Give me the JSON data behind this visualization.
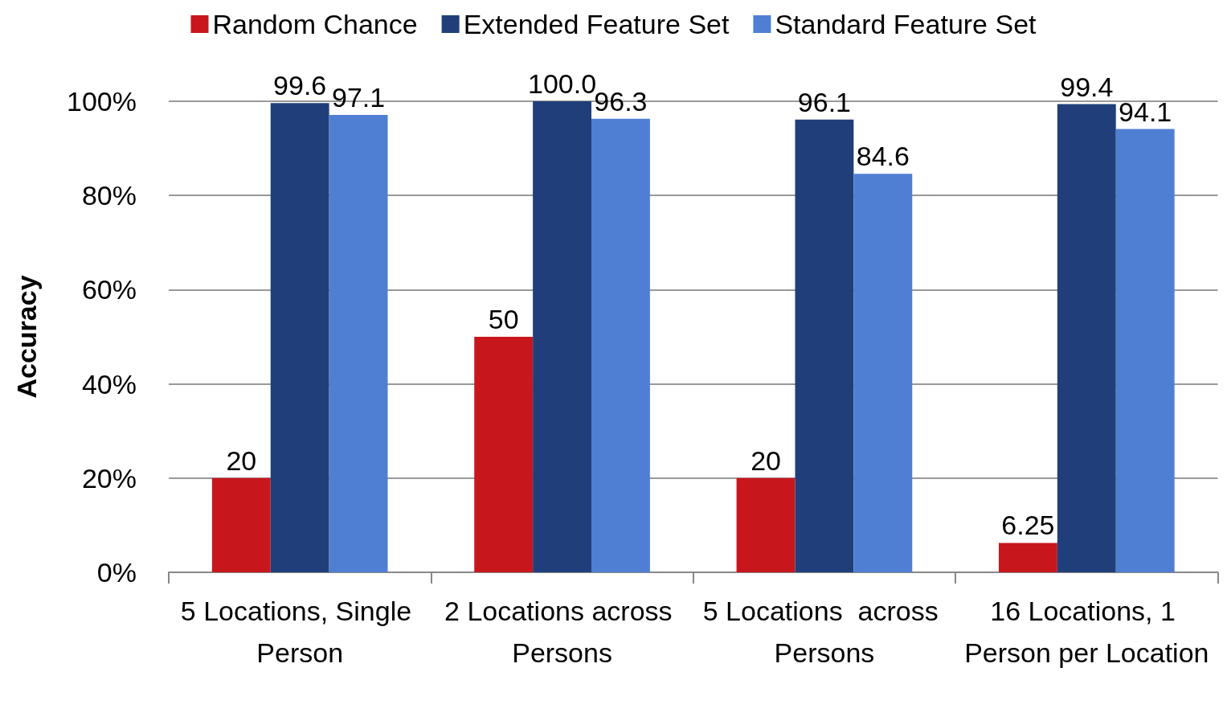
{
  "chart_data": {
    "type": "bar",
    "ylabel": "Accuracy",
    "categories": [
      "5 Locations, Single Person",
      "2 Locations across Persons",
      "5 Locations  across Persons",
      "16 Locations, 1 Person per Location"
    ],
    "series": [
      {
        "name": "Random Chance",
        "color": "#c8161d",
        "values": [
          20,
          50,
          20,
          6.25
        ],
        "value_labels": [
          "20",
          "50",
          "20",
          "6.25"
        ]
      },
      {
        "name": "Extended Feature Set",
        "color": "#203f7a",
        "values": [
          99.6,
          100.0,
          96.1,
          99.4
        ],
        "value_labels": [
          "99.6",
          "100.0",
          "96.1",
          "99.4"
        ]
      },
      {
        "name": "Standard Feature Set",
        "color": "#4f7fd3",
        "values": [
          97.1,
          96.3,
          84.6,
          94.1
        ],
        "value_labels": [
          "97.1",
          "96.3",
          "84.6",
          "94.1"
        ]
      }
    ],
    "ylim": [
      0,
      100
    ],
    "yticks": [
      {
        "value": 0,
        "label": "0%"
      },
      {
        "value": 20,
        "label": "20%"
      },
      {
        "value": 40,
        "label": "40%"
      },
      {
        "value": 60,
        "label": "60%"
      },
      {
        "value": 80,
        "label": "80%"
      },
      {
        "value": 100,
        "label": "100%"
      }
    ],
    "grid": "y",
    "legend": "top"
  }
}
